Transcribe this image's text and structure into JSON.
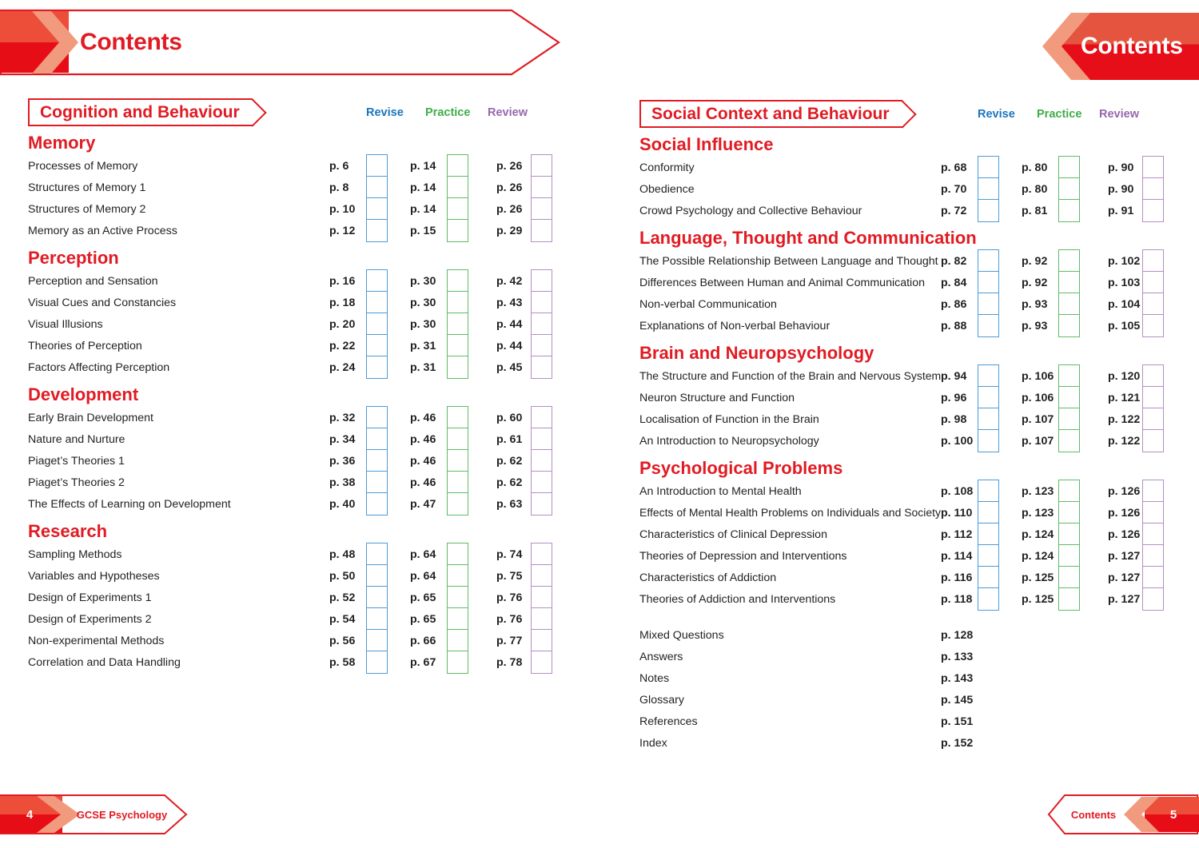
{
  "left_page": {
    "banner_title": "Contents",
    "unit_title": "Cognition and Behaviour",
    "column_headers": {
      "revise": "Revise",
      "practice": "Practice",
      "review": "Review"
    },
    "sections": [
      {
        "title": "Memory",
        "rows": [
          {
            "label": "Processes of Memory",
            "revise": "p. 6",
            "practice": "p. 14",
            "review": "p. 26"
          },
          {
            "label": "Structures of Memory 1",
            "revise": "p. 8",
            "practice": "p. 14",
            "review": "p. 26"
          },
          {
            "label": "Structures of Memory 2",
            "revise": "p. 10",
            "practice": "p. 14",
            "review": "p. 26"
          },
          {
            "label": "Memory as an Active Process",
            "revise": "p. 12",
            "practice": "p. 15",
            "review": "p. 29"
          }
        ]
      },
      {
        "title": "Perception",
        "rows": [
          {
            "label": "Perception and Sensation",
            "revise": "p. 16",
            "practice": "p. 30",
            "review": "p. 42"
          },
          {
            "label": "Visual Cues and Constancies",
            "revise": "p. 18",
            "practice": "p. 30",
            "review": "p. 43"
          },
          {
            "label": "Visual Illusions",
            "revise": "p. 20",
            "practice": "p. 30",
            "review": "p. 44"
          },
          {
            "label": "Theories of Perception",
            "revise": "p. 22",
            "practice": "p. 31",
            "review": "p. 44"
          },
          {
            "label": "Factors Affecting Perception",
            "revise": "p. 24",
            "practice": "p. 31",
            "review": "p. 45"
          }
        ]
      },
      {
        "title": "Development",
        "rows": [
          {
            "label": "Early Brain Development",
            "revise": "p. 32",
            "practice": "p. 46",
            "review": "p. 60"
          },
          {
            "label": "Nature and Nurture",
            "revise": "p. 34",
            "practice": "p. 46",
            "review": "p. 61"
          },
          {
            "label": "Piaget’s Theories 1",
            "revise": "p. 36",
            "practice": "p. 46",
            "review": "p. 62"
          },
          {
            "label": "Piaget’s Theories 2",
            "revise": "p. 38",
            "practice": "p. 46",
            "review": "p. 62"
          },
          {
            "label": "The Effects of Learning on Development",
            "revise": "p. 40",
            "practice": "p. 47",
            "review": "p. 63"
          }
        ]
      },
      {
        "title": "Research",
        "rows": [
          {
            "label": "Sampling Methods",
            "revise": "p. 48",
            "practice": "p. 64",
            "review": "p. 74"
          },
          {
            "label": "Variables and Hypotheses",
            "revise": "p. 50",
            "practice": "p. 64",
            "review": "p. 75"
          },
          {
            "label": "Design of Experiments 1",
            "revise": "p. 52",
            "practice": "p. 65",
            "review": "p. 76"
          },
          {
            "label": "Design of Experiments 2",
            "revise": "p. 54",
            "practice": "p. 65",
            "review": "p. 76"
          },
          {
            "label": "Non-experimental Methods",
            "revise": "p. 56",
            "practice": "p. 66",
            "review": "p. 77"
          },
          {
            "label": "Correlation and Data Handling",
            "revise": "p. 58",
            "practice": "p. 67",
            "review": "p. 78"
          }
        ]
      }
    ],
    "footer": {
      "page_number": "4",
      "label": "GCSE Psychology"
    }
  },
  "right_page": {
    "banner_title": "Contents",
    "unit_title": "Social Context and Behaviour",
    "column_headers": {
      "revise": "Revise",
      "practice": "Practice",
      "review": "Review"
    },
    "sections": [
      {
        "title": "Social Influence",
        "rows": [
          {
            "label": "Conformity",
            "revise": "p. 68",
            "practice": "p. 80",
            "review": "p. 90"
          },
          {
            "label": "Obedience",
            "revise": "p. 70",
            "practice": "p. 80",
            "review": "p. 90"
          },
          {
            "label": "Crowd Psychology and Collective Behaviour",
            "revise": "p. 72",
            "practice": "p. 81",
            "review": "p. 91"
          }
        ]
      },
      {
        "title": "Language, Thought and Communication",
        "rows": [
          {
            "label": "The Possible Relationship Between Language and Thought",
            "revise": "p. 82",
            "practice": "p. 92",
            "review": "p. 102"
          },
          {
            "label": "Differences Between Human and Animal Communication",
            "revise": "p. 84",
            "practice": "p. 92",
            "review": "p. 103"
          },
          {
            "label": "Non-verbal Communication",
            "revise": "p. 86",
            "practice": "p. 93",
            "review": "p. 104"
          },
          {
            "label": "Explanations of Non-verbal Behaviour",
            "revise": "p. 88",
            "practice": "p. 93",
            "review": "p. 105"
          }
        ]
      },
      {
        "title": "Brain and Neuropsychology",
        "rows": [
          {
            "label": "The Structure and Function of the Brain and Nervous System",
            "revise": "p. 94",
            "practice": "p. 106",
            "review": "p. 120"
          },
          {
            "label": "Neuron Structure and Function",
            "revise": "p. 96",
            "practice": "p. 106",
            "review": "p. 121"
          },
          {
            "label": "Localisation of Function in the Brain",
            "revise": "p. 98",
            "practice": "p. 107",
            "review": "p. 122"
          },
          {
            "label": "An Introduction to Neuropsychology",
            "revise": "p. 100",
            "practice": "p. 107",
            "review": "p. 122"
          }
        ]
      },
      {
        "title": "Psychological Problems",
        "rows": [
          {
            "label": "An Introduction to Mental Health",
            "revise": "p. 108",
            "practice": "p. 123",
            "review": "p. 126"
          },
          {
            "label": "Effects of Mental Health Problems on Individuals and Society",
            "revise": "p. 110",
            "practice": "p. 123",
            "review": "p. 126"
          },
          {
            "label": "Characteristics of Clinical Depression",
            "revise": "p. 112",
            "practice": "p. 124",
            "review": "p. 126"
          },
          {
            "label": "Theories of Depression and Interventions",
            "revise": "p. 114",
            "practice": "p. 124",
            "review": "p. 127"
          },
          {
            "label": "Characteristics of Addiction",
            "revise": "p. 116",
            "practice": "p. 125",
            "review": "p. 127"
          },
          {
            "label": "Theories of Addiction and Interventions",
            "revise": "p. 118",
            "practice": "p. 125",
            "review": "p. 127"
          }
        ]
      }
    ],
    "end_matter": [
      {
        "label": "Mixed Questions",
        "page": "p. 128"
      },
      {
        "label": "Answers",
        "page": "p. 133"
      },
      {
        "label": "Notes",
        "page": "p. 143"
      },
      {
        "label": "Glossary",
        "page": "p. 145"
      },
      {
        "label": "References",
        "page": "p. 151"
      },
      {
        "label": "Index",
        "page": "p. 152"
      }
    ],
    "footer": {
      "label": "Contents",
      "page_number": "5"
    }
  },
  "colors": {
    "red": "#e11b23",
    "red_dark_block": "#e70d17",
    "red_light_block": "#ec4e3a",
    "salmon_chevron": "#f29a7d",
    "revise_blue": "#1b76bd",
    "practice_green": "#3fae49",
    "review_purple": "#9668ae",
    "checkbox_blue": "#4d9bd5",
    "checkbox_green": "#5fbc66",
    "checkbox_purple": "#b58ec4"
  }
}
